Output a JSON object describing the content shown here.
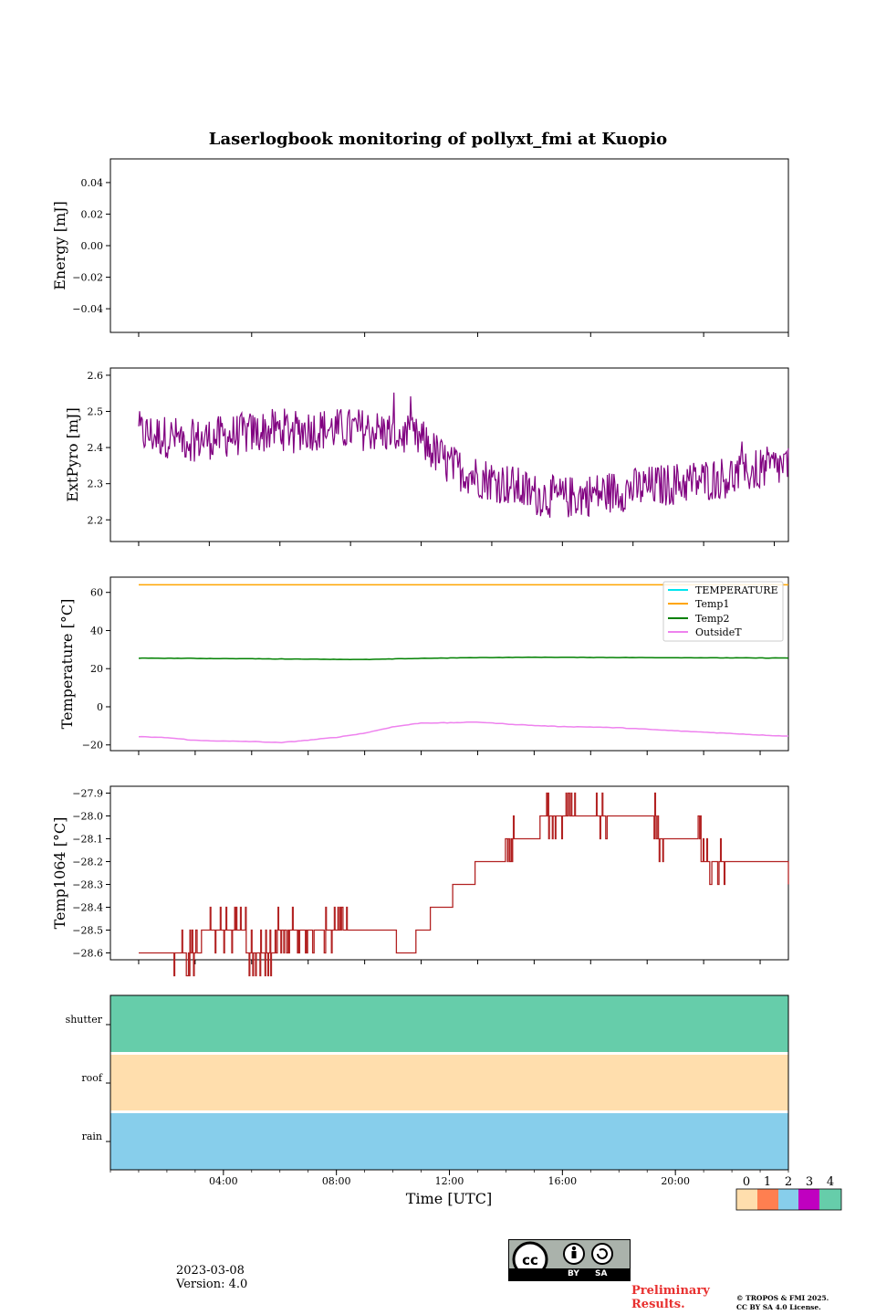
{
  "title": "Laserlogbook monitoring of pollyxt_fmi at Kuopio",
  "colors": {
    "extpyro": "#800080",
    "temperature": "#00e5ee",
    "temp1": "#ffa500",
    "temp2": "#008000",
    "outsideT": "#ee82ee",
    "temp1064": "#b22222",
    "status0": "#ffdead",
    "status1": "#ff7f50",
    "status2": "#87ceeb",
    "status3": "#c000c0",
    "status4": "#66cdaa"
  },
  "chart_data": [
    {
      "type": "line",
      "name": "energy",
      "ylabel": "Energy [mJ]",
      "ylim": [
        -0.055,
        0.055
      ],
      "yticks": [
        -0.04,
        -0.02,
        0.0,
        0.02,
        0.04
      ],
      "ytick_labels": [
        "−0.04",
        "−0.02",
        "0.00",
        "0.02",
        "0.04"
      ],
      "series": []
    },
    {
      "type": "line",
      "name": "extpyro",
      "ylabel": "ExtPyro [mJ]",
      "ylim": [
        2.14,
        2.62
      ],
      "yticks": [
        2.2,
        2.3,
        2.4,
        2.5,
        2.6
      ],
      "ytick_labels": [
        "2.2",
        "2.3",
        "2.4",
        "2.5",
        "2.6"
      ],
      "series": [
        {
          "name": "ExtPyro",
          "x_hours": [
            1,
            2,
            3,
            4,
            5,
            6,
            7,
            8,
            9,
            10,
            11,
            12,
            13,
            14,
            15,
            16,
            17,
            18,
            19,
            20,
            21,
            22,
            23,
            24
          ],
          "values": [
            2.44,
            2.43,
            2.42,
            2.43,
            2.44,
            2.45,
            2.45,
            2.45,
            2.45,
            2.44,
            2.42,
            2.35,
            2.32,
            2.3,
            2.27,
            2.26,
            2.27,
            2.28,
            2.29,
            2.3,
            2.31,
            2.32,
            2.34,
            2.35
          ]
        }
      ]
    },
    {
      "type": "line",
      "name": "temperature",
      "ylabel": "Temperature [°C]",
      "ylim": [
        -23,
        68
      ],
      "yticks": [
        -20,
        0,
        20,
        40,
        60
      ],
      "ytick_labels": [
        "−20",
        "0",
        "20",
        "40",
        "60"
      ],
      "legend_position": "top-right",
      "series": [
        {
          "name": "TEMPERATURE",
          "x_hours": [],
          "values": []
        },
        {
          "name": "Temp1",
          "x_hours": [
            1,
            24
          ],
          "values": [
            64,
            64
          ]
        },
        {
          "name": "Temp2",
          "x_hours": [
            1,
            3,
            5,
            7,
            9,
            11,
            13,
            15,
            17,
            19,
            21,
            23,
            24
          ],
          "values": [
            25.5,
            25.4,
            25.2,
            25.0,
            24.8,
            25.4,
            25.8,
            26.0,
            25.9,
            25.8,
            25.7,
            25.6,
            25.6
          ]
        },
        {
          "name": "OutsideT",
          "x_hours": [
            1,
            2,
            3,
            4,
            5,
            6,
            7,
            8,
            9,
            10,
            11,
            12,
            13,
            14,
            15,
            16,
            17,
            18,
            19,
            20,
            21,
            22,
            23,
            24
          ],
          "values": [
            -15.7,
            -16.2,
            -17.6,
            -18.0,
            -18.2,
            -18.8,
            -17.5,
            -16.0,
            -13.8,
            -10.5,
            -8.5,
            -8.4,
            -8.0,
            -9.0,
            -9.8,
            -10.4,
            -10.6,
            -11.0,
            -11.8,
            -12.6,
            -13.3,
            -14.0,
            -14.8,
            -15.4
          ]
        }
      ]
    },
    {
      "type": "line",
      "name": "temp1064",
      "ylabel": "Temp1064 [°C]",
      "ylim": [
        -28.63,
        -27.87
      ],
      "yticks": [
        -28.6,
        -28.5,
        -28.4,
        -28.3,
        -28.2,
        -28.1,
        -28.0,
        -27.9
      ],
      "ytick_labels": [
        "−28.6",
        "−28.5",
        "−28.4",
        "−28.3",
        "−28.2",
        "−28.1",
        "−28.0",
        "−27.9"
      ],
      "series": [
        {
          "name": "Temp1064",
          "x_hours": [
            1.0,
            2.1,
            3.2,
            4.8,
            5.9,
            8.4,
            10.1,
            10.8,
            11.3,
            12.1,
            12.9,
            14.0,
            15.2,
            16.5,
            17.4,
            19.4,
            20.9,
            22.0,
            24.0
          ],
          "values": [
            -28.6,
            -28.6,
            -28.5,
            -28.6,
            -28.5,
            -28.5,
            -28.6,
            -28.5,
            -28.4,
            -28.3,
            -28.2,
            -28.1,
            -28.0,
            -28.0,
            -28.0,
            -28.1,
            -28.2,
            -28.2,
            -28.3
          ]
        }
      ]
    },
    {
      "type": "heatmap",
      "name": "status",
      "xlabel": "Time [UTC]",
      "xticks": [
        "04:00",
        "08:00",
        "12:00",
        "16:00",
        "20:00"
      ],
      "xtick_hours": [
        4,
        8,
        12,
        16,
        20
      ],
      "xlim_hours": [
        0,
        24
      ],
      "rows": [
        "shutter",
        "roof",
        "rain"
      ],
      "row_status": [
        4,
        0,
        2
      ],
      "colorbar_ticks": [
        "0",
        "1",
        "2",
        "3",
        "4"
      ]
    }
  ],
  "footer": {
    "date": "2023-03-08",
    "version": "Version: 4.0",
    "cc_by": "BY",
    "cc_sa": "SA",
    "preliminary_line1": "Preliminary",
    "preliminary_line2": "Results.",
    "copyright_line1": "© TROPOS & FMI 2025.",
    "copyright_line2": "CC BY SA 4.0 License."
  }
}
